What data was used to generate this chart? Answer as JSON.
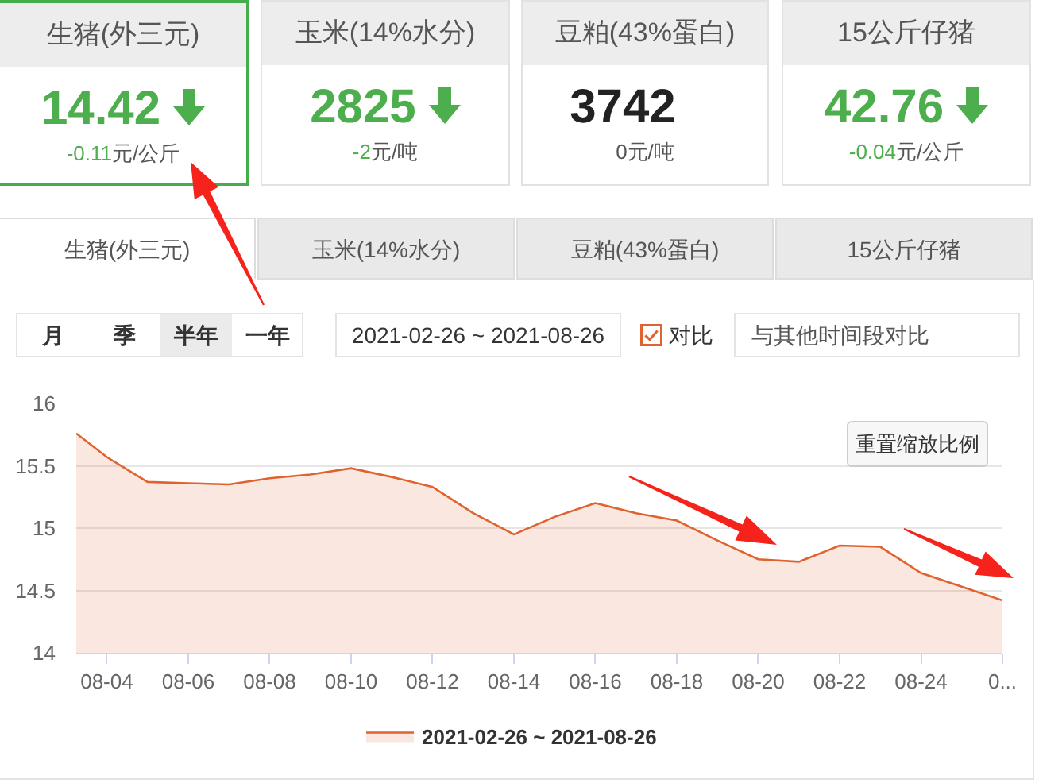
{
  "chart_data": [
    {
      "type": "other",
      "title": "生猪(外三元)",
      "annotations": [
        "14.42",
        "-0.11",
        "元/公斤"
      ],
      "colors": [
        "#4cae4c",
        "#4cae4c",
        "#4cae4c"
      ]
    },
    {
      "type": "other",
      "title": "玉米(14%水分)",
      "annotations": [
        "2825",
        "-2",
        "元/吨"
      ],
      "colors": [
        "#4cae4c",
        "#4cae4c",
        "#4cae4c"
      ]
    },
    {
      "type": "other",
      "title": "豆粕(43%蛋白)",
      "annotations": [
        "3742",
        "0",
        "元/吨"
      ],
      "colors": [
        "#222222",
        null,
        "#555555"
      ]
    },
    {
      "type": "other",
      "title": "15公斤仔猪",
      "annotations": [
        "42.76",
        "-0.04",
        "元/公斤"
      ],
      "colors": [
        "#4cae4c",
        "#4cae4c",
        "#4cae4c"
      ]
    },
    {
      "type": "area",
      "x": [
        "2021-08-03T06:00",
        "2021-08-04",
        "2021-08-05",
        "2021-08-06",
        "2021-08-07",
        "2021-08-08",
        "2021-08-09",
        "2021-08-10",
        "2021-08-11",
        "2021-08-12",
        "2021-08-13",
        "2021-08-14",
        "2021-08-15",
        "2021-08-16",
        "2021-08-17",
        "2021-08-18",
        "2021-08-19",
        "2021-08-20",
        "2021-08-21",
        "2021-08-22",
        "2021-08-23",
        "2021-08-24",
        "2021-08-25",
        "2021-08-26"
      ],
      "series": [
        {
          "name": "2021-02-26 ~ 2021-08-26",
          "color": "#e0622e",
          "values": [
            15.76,
            15.57,
            15.37,
            15.36,
            15.35,
            15.4,
            15.43,
            15.48,
            15.41,
            15.33,
            15.12,
            14.95,
            15.09,
            15.2,
            15.12,
            15.06,
            14.9,
            14.75,
            14.73,
            14.86,
            14.85,
            14.64,
            14.53,
            14.42
          ]
        }
      ],
      "xlim": [
        "2021-08-03T06:00",
        "2021-08-26"
      ],
      "xticks": [
        {
          "value": "2021-08-04",
          "label": "08-04"
        },
        {
          "value": "2021-08-06",
          "label": "08-06"
        },
        {
          "value": "2021-08-08",
          "label": "08-08"
        },
        {
          "value": "2021-08-10",
          "label": "08-10"
        },
        {
          "value": "2021-08-12",
          "label": "08-12"
        },
        {
          "value": "2021-08-14",
          "label": "08-14"
        },
        {
          "value": "2021-08-16",
          "label": "08-16"
        },
        {
          "value": "2021-08-18",
          "label": "08-18"
        },
        {
          "value": "2021-08-20",
          "label": "08-20"
        },
        {
          "value": "2021-08-22",
          "label": "08-22"
        },
        {
          "value": "2021-08-24",
          "label": "08-24"
        },
        {
          "value": "2021-08-26",
          "label": "0..."
        }
      ],
      "ylim": [
        14,
        16
      ],
      "yticks": [
        14,
        14.5,
        15,
        15.5,
        16
      ],
      "grid": "y",
      "legend": "bottom",
      "annotations": [
        "生猪(外三元)",
        "玉米(14%水分)",
        "豆粕(43%蛋白)",
        "15公斤仔猪",
        "月",
        "季",
        "半年",
        "一年",
        "2021-02-26 ~ 2021-08-26",
        "对比",
        "与其他时间段对比",
        "重置缩放比例"
      ]
    }
  ]
}
